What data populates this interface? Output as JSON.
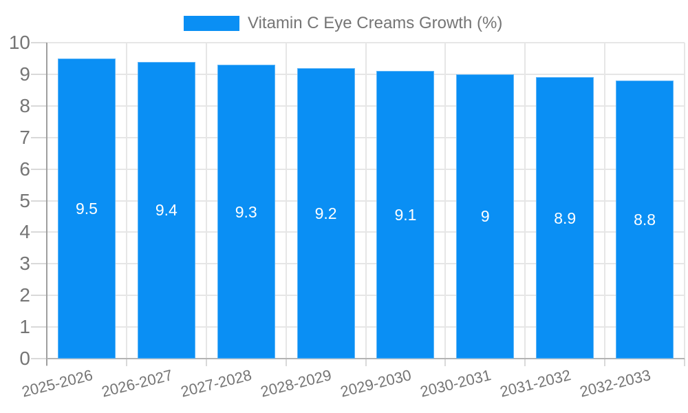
{
  "legend": {
    "label": "Vitamin C Eye Creams Growth (%)"
  },
  "colors": {
    "bar": "#0a8ff4",
    "bar_border": "rgba(255,255,255,0.35)",
    "bar_label": "#ffffff",
    "text": "#757575",
    "grid": "#e6e6e6",
    "tick": "#d9d9d9",
    "axis": "#9e9e9e",
    "baseline": "#b3b3b3"
  },
  "chart_data": {
    "type": "bar",
    "title": "Vitamin C Eye Creams Growth (%)",
    "legend_position": "top",
    "categories": [
      "2025-2026",
      "2026-2027",
      "2027-2028",
      "2028-2029",
      "2029-2030",
      "2030-2031",
      "2031-2032",
      "2032-2033"
    ],
    "values": [
      9.5,
      9.4,
      9.3,
      9.2,
      9.1,
      9,
      8.9,
      8.8
    ],
    "bar_labels": [
      "9.5",
      "9.4",
      "9.3",
      "9.2",
      "9.1",
      "9",
      "8.9",
      "8.8"
    ],
    "xlabel": "",
    "ylabel": "",
    "ylim": [
      0,
      10
    ],
    "yticks": [
      0,
      1,
      2,
      3,
      4,
      5,
      6,
      7,
      8,
      9,
      10
    ],
    "grid": true
  }
}
